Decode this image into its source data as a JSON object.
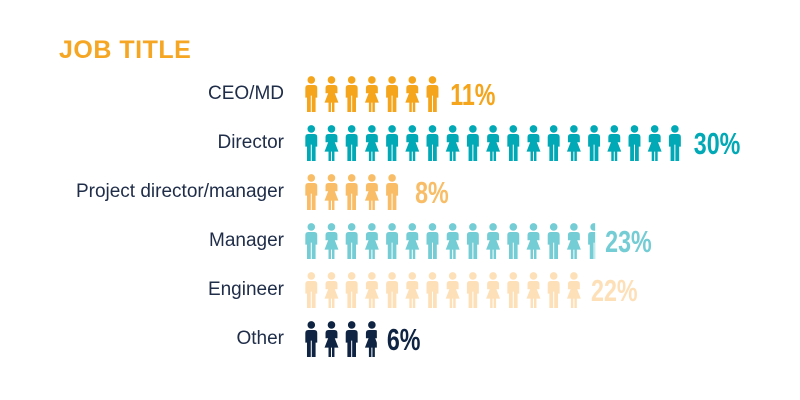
{
  "title": "JOB TITLE",
  "colors": {
    "title": "#f5a623",
    "ceo": "#f4a51c",
    "director": "#00a9b5",
    "project": "#f8bd66",
    "manager": "#74ccd4",
    "engineer": "#fde0b8",
    "other": "#0e2442",
    "label_text": "#1f2d49"
  },
  "chart_data": {
    "type": "bar",
    "title": "JOB TITLE",
    "unit": "%",
    "categories": [
      "CEO/MD",
      "Director",
      "Project director/manager",
      "Manager",
      "Engineer",
      "Other"
    ],
    "values": [
      11,
      30,
      8,
      23,
      22,
      6
    ],
    "value_labels": [
      "11%",
      "30%",
      "8%",
      "23%",
      "22%",
      "6%"
    ],
    "icons": "person-icons (alternating male/female)"
  }
}
